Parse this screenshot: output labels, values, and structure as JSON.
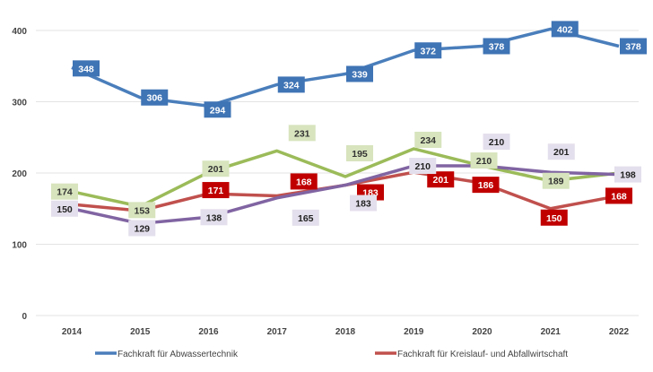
{
  "chart_data": {
    "type": "line",
    "title": "",
    "xlabel": "",
    "ylabel": "",
    "x": [
      "2014",
      "2015",
      "2016",
      "2017",
      "2018",
      "2019",
      "2020",
      "2021",
      "2022"
    ],
    "ylim": [
      0,
      400
    ],
    "yticks": [
      "0",
      "100",
      "200",
      "300",
      "400"
    ],
    "grid": true,
    "legend_position": "bottom",
    "series": [
      {
        "name": "Fachkraft für Abwassertechnik",
        "color": "#4a7ebb",
        "label_bg": "#3f74b5",
        "label_fg": "#ffffff",
        "values": [
          348,
          306,
          294,
          324,
          339,
          372,
          378,
          402,
          378
        ],
        "labels": [
          "348",
          "306",
          "294",
          "324",
          "339",
          "372",
          "378",
          "402",
          "378"
        ]
      },
      {
        "name": "Fachkraft für Kreislauf- und Abfallwirtschaft",
        "color": "#c0504d",
        "label_bg": "#c00000",
        "label_fg": "#ffffff",
        "values": [
          156,
          147,
          171,
          168,
          183,
          201,
          186,
          150,
          168
        ],
        "labels": [
          "",
          "",
          "171",
          "168",
          "183",
          "201",
          "186",
          "150",
          "168"
        ]
      },
      {
        "color": "#9bbb59",
        "label_bg": "#d7e4bd",
        "label_fg": "#333333",
        "values": [
          174,
          153,
          201,
          231,
          195,
          234,
          210,
          189,
          200
        ],
        "labels": [
          "174",
          "153",
          "201",
          "231",
          "195",
          "234",
          "210",
          "189",
          ""
        ]
      },
      {
        "color": "#8064a2",
        "label_bg": "#e4dfec",
        "label_fg": "#222222",
        "values": [
          150,
          129,
          138,
          165,
          183,
          210,
          210,
          201,
          198
        ],
        "labels": [
          "150",
          "129",
          "138",
          "165",
          "183",
          "210",
          "210",
          "201",
          "198"
        ]
      }
    ]
  }
}
